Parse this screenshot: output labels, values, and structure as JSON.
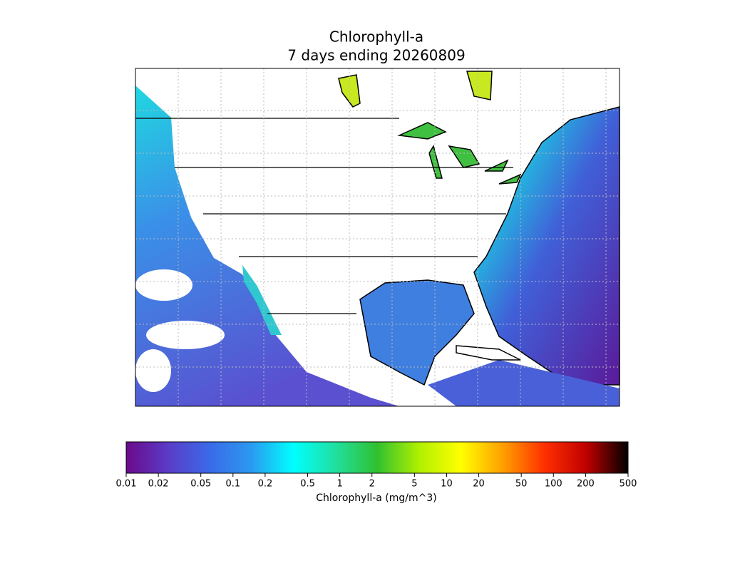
{
  "map": {
    "title": "Chlorophyll-a",
    "subtitle": "7 days ending 20260809"
  },
  "colorbar": {
    "type": "colorbar",
    "label": "Chlorophyll-a (mg/m^3)",
    "log_scale": true,
    "xlim": [
      0.01,
      500
    ],
    "xticks": [
      0.01,
      0.02,
      0.05,
      0.1,
      0.2,
      0.5,
      1,
      2,
      5,
      10,
      20,
      50,
      100,
      200,
      500
    ],
    "colormap": [
      "#6a0a8a",
      "#5a3cc8",
      "#3a6ae8",
      "#2a9af0",
      "#00ffff",
      "#20e0a0",
      "#30c030",
      "#b0f000",
      "#ffff00",
      "#ffa000",
      "#ff3000",
      "#c00000",
      "#000000"
    ]
  }
}
